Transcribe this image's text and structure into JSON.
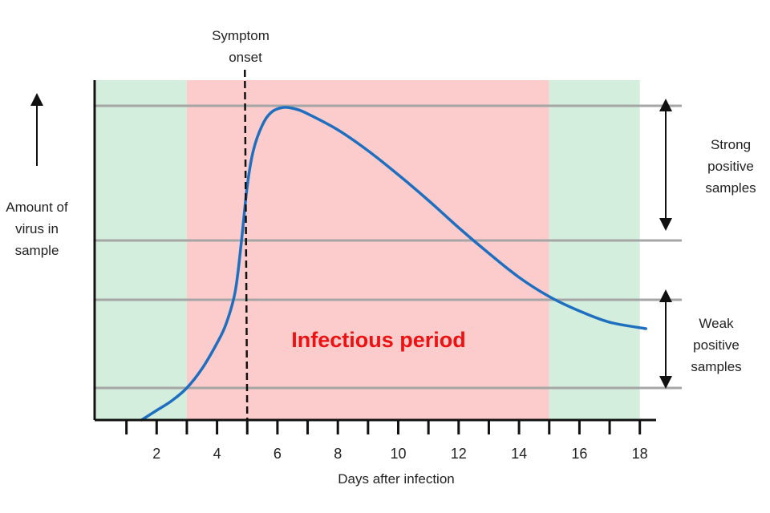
{
  "chart_data": {
    "type": "line",
    "title": "",
    "xlabel": "Days after infection",
    "ylabel_lines": [
      "Amount of",
      "virus in",
      "sample"
    ],
    "xlim": [
      0,
      18.4
    ],
    "ylim": [
      0,
      1
    ],
    "x_ticks": [
      1,
      2,
      3,
      4,
      5,
      6,
      7,
      8,
      9,
      10,
      11,
      12,
      13,
      14,
      15,
      16,
      17,
      18
    ],
    "x_tick_labels": [
      {
        "value": 2,
        "label": "2"
      },
      {
        "value": 4,
        "label": "4"
      },
      {
        "value": 6,
        "label": "6"
      },
      {
        "value": 8,
        "label": "8"
      },
      {
        "value": 10,
        "label": "10"
      },
      {
        "value": 12,
        "label": "12"
      },
      {
        "value": 14,
        "label": "14"
      },
      {
        "value": 16,
        "label": "16"
      },
      {
        "value": 18,
        "label": "18"
      }
    ],
    "series": [
      {
        "name": "Amount of virus in sample",
        "color": "#1f6fc1",
        "x": [
          1.5,
          2.0,
          2.5,
          3.0,
          3.5,
          4.0,
          4.3,
          4.6,
          4.8,
          5.0,
          5.2,
          5.5,
          5.8,
          6.2,
          6.6,
          7.0,
          8.0,
          9.0,
          10.0,
          11.0,
          12.0,
          13.0,
          14.0,
          15.0,
          16.0,
          17.0,
          18.2
        ],
        "y": [
          0.0,
          0.03,
          0.06,
          0.1,
          0.16,
          0.24,
          0.3,
          0.4,
          0.55,
          0.73,
          0.84,
          0.92,
          0.96,
          0.975,
          0.97,
          0.955,
          0.905,
          0.84,
          0.765,
          0.685,
          0.6,
          0.52,
          0.445,
          0.385,
          0.34,
          0.305,
          0.285
        ]
      }
    ],
    "thresholds": [
      {
        "name": "strong-upper",
        "y": 0.98,
        "color": "#a6a6a6"
      },
      {
        "name": "strong-lower",
        "y": 0.56,
        "color": "#a6a6a6"
      },
      {
        "name": "weak-upper",
        "y": 0.375,
        "color": "#a6a6a6"
      },
      {
        "name": "weak-lower",
        "y": 0.1,
        "color": "#a6a6a6"
      }
    ],
    "regions": [
      {
        "name": "pre-infectious",
        "x": [
          0,
          3
        ],
        "color": "#d3eedd"
      },
      {
        "name": "infectious",
        "x": [
          3,
          15
        ],
        "color": "#fccccc"
      },
      {
        "name": "post-infectious",
        "x": [
          15,
          18
        ],
        "color": "#d3eedd"
      }
    ],
    "annotations": {
      "symptom_onset": {
        "x": 5,
        "lines": [
          "Symptom",
          "onset"
        ]
      },
      "infectious_period": {
        "text": "Infectious period",
        "color": "#ee1111"
      },
      "strong_positive": {
        "lines": [
          "Strong",
          "positive",
          "samples"
        ]
      },
      "weak_positive": {
        "lines": [
          "Weak",
          "positive",
          "samples"
        ]
      }
    }
  }
}
